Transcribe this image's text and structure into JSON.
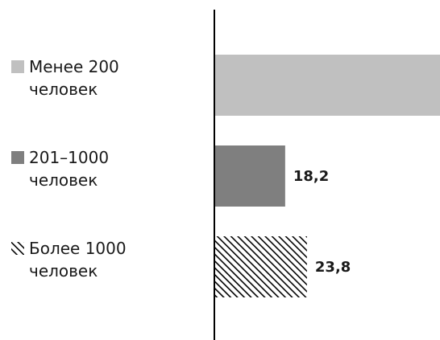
{
  "chart_data": {
    "type": "bar",
    "orientation": "horizontal",
    "categories": [
      {
        "line1": "Менее 200",
        "line2": "человек"
      },
      {
        "line1": "201–1000",
        "line2": "человек"
      },
      {
        "line1": "Более 1000",
        "line2": "человек"
      }
    ],
    "values": [
      58.0,
      18.2,
      23.8
    ],
    "value_labels": [
      "",
      "18,2",
      "23,8"
    ],
    "colors": [
      "#c0c0c0",
      "#7f7f7f",
      "#000000"
    ],
    "patterns": [
      "solid",
      "solid",
      "diagonal-hatch"
    ],
    "xlim": [
      0,
      58
    ],
    "grid": false,
    "legend": "none"
  }
}
